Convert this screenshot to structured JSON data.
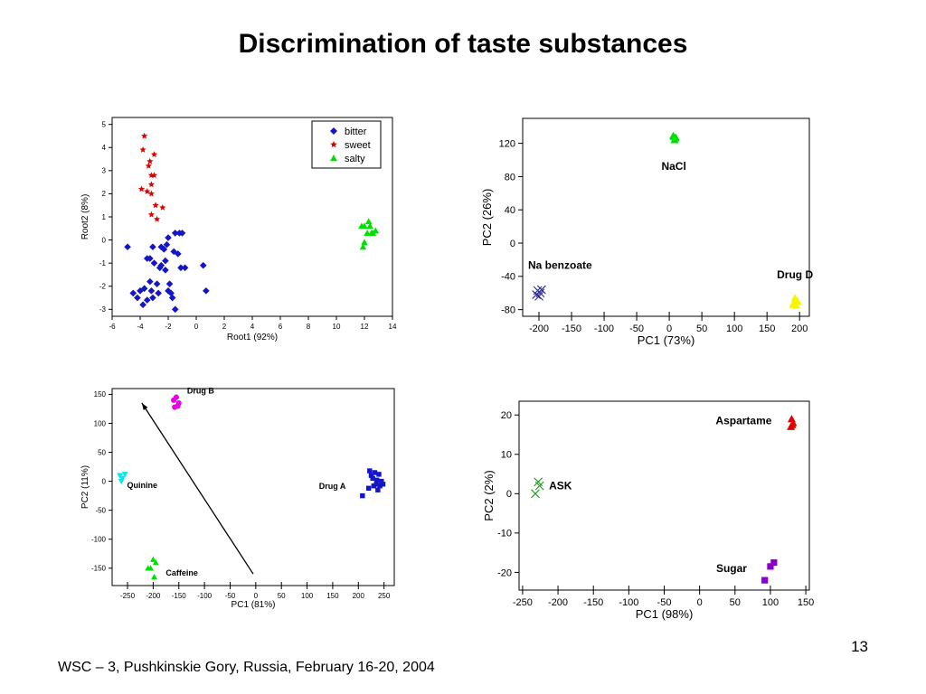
{
  "slide": {
    "title": "Discrimination of taste substances",
    "page_number": "13",
    "footer": "WSC – 3, Pushkinskie Gory, Russia, February 16-20, 2004"
  },
  "colors": {
    "bitter": "#1515c8",
    "sweet": "#e00000",
    "salty": "#00e000",
    "yellow": "#f5f500",
    "navy": "#2a2a9a",
    "cyan": "#00e8e8",
    "magenta": "#e800e8",
    "green_x": "#1a9a1a",
    "purple": "#8a00c8"
  },
  "chart_data": [
    {
      "type": "scatter",
      "xlabel": "Root1 (92%)",
      "ylabel": "Root2 (8%)",
      "xlim": [
        -6,
        14
      ],
      "ylim": [
        -3.3,
        5.3
      ],
      "xticks": [
        -6,
        -4,
        -2,
        0,
        2,
        4,
        6,
        8,
        10,
        12,
        14
      ],
      "yticks": [
        -3,
        -2,
        -1,
        0,
        1,
        2,
        3,
        4,
        5
      ],
      "legend_position": "top-right",
      "series": [
        {
          "name": "bitter",
          "marker": "diamond",
          "color": "#1515c8",
          "points": [
            [
              -4.9,
              -0.3
            ],
            [
              -4.5,
              -2.3
            ],
            [
              -4.2,
              -2.5
            ],
            [
              -4.0,
              -2.2
            ],
            [
              -3.8,
              -2.8
            ],
            [
              -3.7,
              -2.1
            ],
            [
              -3.5,
              -0.8
            ],
            [
              -3.5,
              -2.6
            ],
            [
              -3.3,
              -0.8
            ],
            [
              -3.2,
              -2.2
            ],
            [
              -3.1,
              -2.5
            ],
            [
              -3.0,
              -1.0
            ],
            [
              -3.1,
              -0.3
            ],
            [
              -2.8,
              -1.9
            ],
            [
              -2.7,
              -2.3
            ],
            [
              -2.6,
              -1.2
            ],
            [
              -2.5,
              -1.1
            ],
            [
              -2.3,
              -0.4
            ],
            [
              -2.1,
              -0.2
            ],
            [
              -2.0,
              0.1
            ],
            [
              -2.2,
              -1.3
            ],
            [
              -2.0,
              -2.2
            ],
            [
              -1.8,
              -2.3
            ],
            [
              -1.7,
              -2.5
            ],
            [
              -1.6,
              -0.5
            ],
            [
              -1.5,
              0.3
            ],
            [
              -1.3,
              -0.6
            ],
            [
              -1.2,
              0.3
            ],
            [
              -1.1,
              -1.2
            ],
            [
              -1.0,
              0.3
            ],
            [
              -0.8,
              -1.2
            ],
            [
              -2.5,
              -0.3
            ],
            [
              -1.5,
              -3.0
            ],
            [
              -1.9,
              -1.9
            ],
            [
              -3.3,
              -1.8
            ],
            [
              0.5,
              -1.1
            ],
            [
              0.7,
              -2.2
            ],
            [
              -2.2,
              -0.9
            ]
          ]
        },
        {
          "name": "sweet",
          "marker": "star",
          "color": "#e00000",
          "points": [
            [
              -3.7,
              4.5
            ],
            [
              -3.8,
              3.9
            ],
            [
              -3.4,
              3.2
            ],
            [
              -3.3,
              3.4
            ],
            [
              -3.0,
              3.7
            ],
            [
              -3.2,
              2.8
            ],
            [
              -3.0,
              2.8
            ],
            [
              -3.2,
              2.4
            ],
            [
              -3.9,
              2.2
            ],
            [
              -3.5,
              2.1
            ],
            [
              -3.2,
              2.0
            ],
            [
              -2.9,
              1.5
            ],
            [
              -2.4,
              1.4
            ],
            [
              -3.2,
              1.1
            ],
            [
              -2.8,
              0.9
            ]
          ]
        },
        {
          "name": "salty",
          "marker": "triangle",
          "color": "#00e000",
          "points": [
            [
              11.8,
              0.6
            ],
            [
              12.0,
              0.6
            ],
            [
              12.3,
              0.8
            ],
            [
              12.5,
              0.3
            ],
            [
              12.2,
              0.3
            ],
            [
              12.8,
              0.4
            ],
            [
              12.6,
              0.3
            ],
            [
              11.9,
              -0.3
            ],
            [
              12.0,
              -0.1
            ],
            [
              12.4,
              0.6
            ]
          ]
        }
      ]
    },
    {
      "type": "scatter",
      "xlabel": "PC1 (73%)",
      "ylabel": "PC2 (26%)",
      "xlim": [
        -225,
        215
      ],
      "ylim": [
        -88,
        150
      ],
      "xticks": [
        -200,
        -150,
        -100,
        -50,
        0,
        50,
        100,
        150,
        200
      ],
      "yticks": [
        -80,
        -40,
        0,
        40,
        80,
        120
      ],
      "series": [
        {
          "name": "NaCl",
          "marker": "triangle",
          "color": "#00e000",
          "points": [
            [
              7,
              128
            ],
            [
              9,
              126
            ],
            [
              8,
              124
            ],
            [
              6,
              129
            ],
            [
              10,
              127
            ]
          ]
        },
        {
          "name": "Na benzoate",
          "marker": "cross",
          "color": "#2a2a9a",
          "points": [
            [
              -202,
              -57
            ],
            [
              -198,
              -60
            ],
            [
              -204,
              -62
            ],
            [
              -196,
              -56
            ],
            [
              -200,
              -64
            ]
          ]
        },
        {
          "name": "Drug D",
          "marker": "triangle",
          "color": "#f5f500",
          "points": [
            [
              193,
              -66
            ],
            [
              197,
              -70
            ],
            [
              191,
              -72
            ],
            [
              195,
              -75
            ],
            [
              190,
              -74
            ]
          ]
        }
      ],
      "annotations": [
        "NaCl",
        "Na benzoate",
        "Drug D"
      ]
    },
    {
      "type": "scatter",
      "xlabel": "PC1 (81%)",
      "ylabel": "PC2 (11%)",
      "xlim": [
        -280,
        270
      ],
      "ylim": [
        -180,
        160
      ],
      "xticks": [
        -250,
        -200,
        -150,
        -100,
        -50,
        0,
        50,
        100,
        150,
        200,
        250
      ],
      "yticks": [
        -150,
        -100,
        -50,
        0,
        50,
        100,
        150
      ],
      "series": [
        {
          "name": "Drug B",
          "marker": "circle",
          "color": "#e800e8",
          "points": [
            [
              -155,
              145
            ],
            [
              -160,
              140
            ],
            [
              -152,
              130
            ],
            [
              -158,
              128
            ],
            [
              -150,
              135
            ]
          ]
        },
        {
          "name": "Quinine",
          "marker": "triangle-down",
          "color": "#00e8e8",
          "points": [
            [
              -265,
              10
            ],
            [
              -260,
              5
            ],
            [
              -255,
              12
            ],
            [
              -262,
              0
            ]
          ]
        },
        {
          "name": "Caffeine",
          "marker": "triangle",
          "color": "#00e000",
          "points": [
            [
              -200,
              -135
            ],
            [
              -195,
              -140
            ],
            [
              -205,
              -150
            ],
            [
              -210,
              -150
            ],
            [
              -198,
              -165
            ]
          ]
        },
        {
          "name": "Drug A",
          "marker": "square",
          "color": "#1515c8",
          "points": [
            [
              222,
              18
            ],
            [
              225,
              10
            ],
            [
              232,
              15
            ],
            [
              240,
              12
            ],
            [
              228,
              5
            ],
            [
              236,
              2
            ],
            [
              245,
              0
            ],
            [
              235,
              -5
            ],
            [
              242,
              -8
            ],
            [
              248,
              -5
            ],
            [
              230,
              -8
            ],
            [
              220,
              -12
            ],
            [
              208,
              -25
            ],
            [
              238,
              -15
            ]
          ]
        }
      ],
      "arrow": {
        "from": [
          -5,
          -160
        ],
        "to": [
          -222,
          135
        ]
      },
      "annotations": [
        "Drug B",
        "Quinine",
        "Caffeine",
        "Drug A"
      ]
    },
    {
      "type": "scatter",
      "xlabel": "PC1 (98%)",
      "ylabel": "PC2 (2%)",
      "xlim": [
        -255,
        155
      ],
      "ylim": [
        -24.5,
        23.5
      ],
      "xticks": [
        -250,
        -200,
        -150,
        -100,
        -50,
        0,
        50,
        100,
        150
      ],
      "yticks": [
        -20,
        -10,
        0,
        10,
        20
      ],
      "series": [
        {
          "name": "Aspartame",
          "marker": "triangle",
          "color": "#e00000",
          "points": [
            [
              130,
              19
            ],
            [
              132,
              18
            ],
            [
              129,
              17
            ],
            [
              131,
              17.5
            ]
          ]
        },
        {
          "name": "ASK",
          "marker": "cross",
          "color": "#1a9a1a",
          "points": [
            [
              -228,
              3
            ],
            [
              -226,
              2
            ],
            [
              -232,
              0
            ]
          ]
        },
        {
          "name": "Sugar",
          "marker": "square",
          "color": "#8a00c8",
          "points": [
            [
              105,
              -17.5
            ],
            [
              100,
              -18.5
            ],
            [
              92,
              -22
            ]
          ]
        }
      ],
      "annotations": [
        "Aspartame",
        "ASK",
        "Sugar"
      ]
    }
  ]
}
